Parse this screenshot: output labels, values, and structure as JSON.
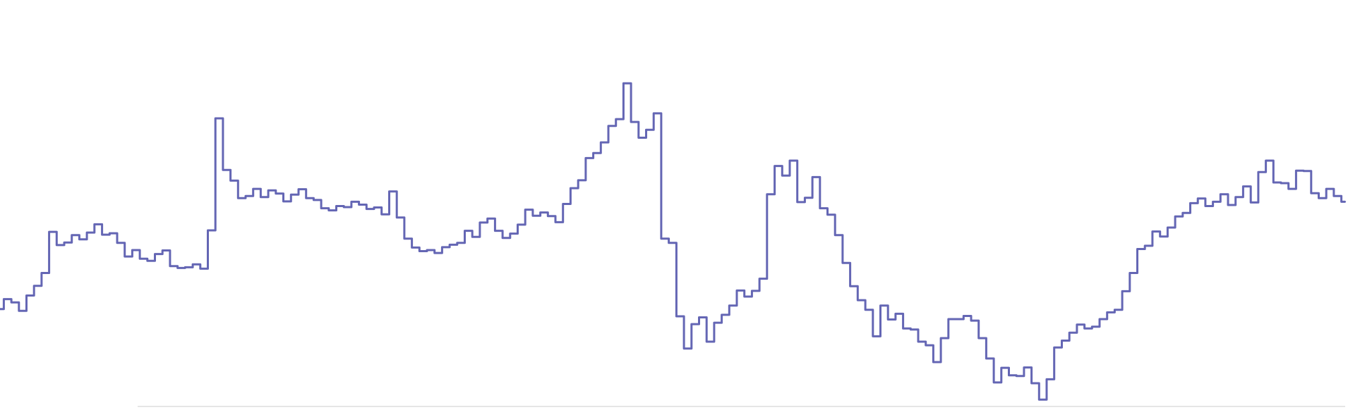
{
  "chart_data": {
    "type": "line",
    "title": "",
    "xlabel": "",
    "ylabel": "",
    "grid": false,
    "legend": "none",
    "color": "#6466b4",
    "baseline_color": "#e6e6e6",
    "xlim": [
      0,
      100
    ],
    "ylim": [
      0,
      100
    ],
    "series": [
      {
        "values": [
          27.4,
          30.2,
          29.3,
          26.9,
          31.2,
          33.9,
          37.5,
          49.0,
          45.3,
          46.0,
          48.1,
          46.9,
          48.8,
          51.1,
          48.2,
          48.6,
          45.9,
          42.1,
          43.9,
          41.5,
          40.9,
          42.8,
          43.8,
          39.4,
          38.9,
          39.1,
          39.9,
          38.7,
          49.4,
          80.7,
          66.3,
          63.3,
          58.4,
          59.0,
          61.0,
          58.7,
          60.6,
          59.7,
          57.5,
          59.4,
          60.9,
          58.4,
          57.9,
          55.6,
          55.0,
          56.2,
          55.9,
          57.4,
          56.6,
          55.4,
          55.8,
          53.9,
          60.3,
          53.0,
          47.1,
          44.6,
          43.6,
          43.9,
          43.1,
          44.7,
          45.4,
          45.9,
          49.3,
          47.6,
          51.6,
          52.7,
          49.3,
          47.3,
          48.5,
          51.0,
          55.2,
          53.5,
          54.4,
          53.4,
          51.7,
          56.8,
          61.2,
          63.4,
          69.6,
          71.0,
          74.0,
          78.6,
          80.5,
          90.5,
          79.7,
          75.3,
          77.5,
          82.1,
          47.1,
          45.9,
          25.4,
          16.4,
          23.2,
          25.1,
          18.3,
          23.6,
          25.8,
          28.4,
          32.6,
          30.9,
          32.5,
          35.9,
          59.5,
          67.4,
          64.7,
          68.9,
          57.3,
          58.5,
          64.3,
          55.6,
          53.8,
          48.1,
          40.3,
          33.8,
          29.9,
          27.2,
          19.8,
          28.4,
          24.5,
          26.1,
          22.0,
          21.7,
          18.3,
          17.3,
          12.6,
          19.3,
          24.6,
          24.6,
          25.5,
          24.2,
          19.3,
          13.6,
          6.9,
          11.0,
          8.9,
          8.7,
          11.1,
          6.7,
          2.1,
          7.8,
          16.7,
          18.6,
          20.8,
          23.1,
          22.0,
          22.5,
          24.6,
          26.5,
          27.2,
          32.4,
          37.5,
          44.2,
          45.1,
          49.1,
          47.7,
          50.2,
          53.3,
          54.3,
          57.0,
          58.3,
          56.2,
          57.4,
          59.5,
          56.5,
          58.7,
          61.7,
          57.2,
          65.7,
          68.9,
          62.8,
          62.6,
          61.0,
          66.1,
          66.0,
          59.8,
          58.4,
          61.0,
          59.0,
          57.4
        ]
      }
    ]
  }
}
